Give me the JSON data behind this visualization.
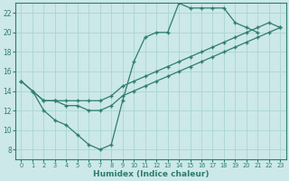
{
  "xlabel": "Humidex (Indice chaleur)",
  "bg_color": "#cce8e8",
  "line_color": "#2e7d6e",
  "grid_color": "#aad4d4",
  "xlim": [
    -0.5,
    23.5
  ],
  "ylim": [
    7,
    23
  ],
  "xticks": [
    0,
    1,
    2,
    3,
    4,
    5,
    6,
    7,
    8,
    9,
    10,
    11,
    12,
    13,
    14,
    15,
    16,
    17,
    18,
    19,
    20,
    21,
    22,
    23
  ],
  "yticks": [
    8,
    10,
    12,
    14,
    16,
    18,
    20,
    22
  ],
  "series": [
    {
      "x": [
        0,
        1,
        2,
        3,
        4,
        5,
        6,
        7,
        8,
        9,
        10,
        11,
        12,
        13,
        14,
        15,
        16,
        17,
        18,
        19,
        20,
        21
      ],
      "y": [
        15,
        14,
        12,
        11,
        10.5,
        9.5,
        8.5,
        8,
        8.5,
        13,
        17,
        19.5,
        20,
        20,
        23,
        22.5,
        22.5,
        22.5,
        22.5,
        21,
        20.5,
        20
      ]
    },
    {
      "x": [
        0,
        2,
        3,
        4,
        5,
        6,
        7,
        8,
        9,
        10,
        11,
        12,
        13,
        14,
        15,
        16,
        17,
        18,
        19,
        20,
        21,
        22,
        23
      ],
      "y": [
        15,
        13,
        13,
        12.5,
        12.5,
        12,
        12,
        12.5,
        13.5,
        14,
        14.5,
        15,
        15.5,
        16,
        16.5,
        17,
        17.5,
        18,
        18.5,
        19,
        19.5,
        20,
        20.5
      ]
    },
    {
      "x": [
        1,
        2,
        3,
        4,
        5,
        6,
        7,
        8,
        9,
        10,
        11,
        12,
        13,
        14,
        15,
        16,
        17,
        18,
        19,
        20,
        21,
        22,
        23
      ],
      "y": [
        14,
        13,
        13,
        13,
        13,
        13,
        13,
        13.5,
        14.5,
        15,
        15.5,
        16,
        16.5,
        17,
        17.5,
        18,
        18.5,
        19,
        19.5,
        20,
        20.5,
        21,
        20.5
      ]
    }
  ]
}
